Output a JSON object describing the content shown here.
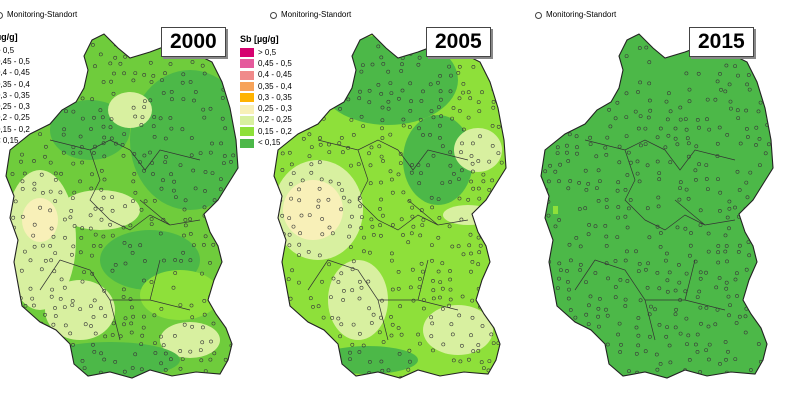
{
  "legend": {
    "monitoring_label": "Monitoring-Standort",
    "title": "Sb [µg/g]",
    "title_cropped": "µg/g]",
    "classes": [
      {
        "label": "> 0,5",
        "color": "#d6006f"
      },
      {
        "label": "0,45 - 0,5",
        "color": "#e55a9c"
      },
      {
        "label": "0,4 - 0,45",
        "color": "#f08a8a"
      },
      {
        "label": "0,35 - 0,4",
        "color": "#f7a35a"
      },
      {
        "label": "0,3 - 0,35",
        "color": "#ffb300"
      },
      {
        "label": "0,25 - 0,3",
        "color": "#f8f0b8"
      },
      {
        "label": "0,2 - 0,25",
        "color": "#d8f0a0"
      },
      {
        "label": "0,15 - 0,2",
        "color": "#8ee03a"
      },
      {
        "label": "< 0,15",
        "color": "#4cb848"
      }
    ],
    "classes_cropped": [
      "> 0,5",
      "0,45 - 0,5",
      "0,4 - 0,45",
      "0,35 - 0,4",
      "0,3 - 0,35",
      "0,25 - 0,3",
      "0,2 - 0,25",
      "0,15 - 0,2",
      "< 0,15"
    ]
  },
  "panels": [
    {
      "year": "2000"
    },
    {
      "year": "2005"
    },
    {
      "year": "2015"
    }
  ],
  "colors": {
    "base_dark": "#4cb848",
    "mid": "#8ee03a",
    "light": "#d8f0a0",
    "pale": "#f8f0b8",
    "dark2": "#3f9f3f"
  }
}
